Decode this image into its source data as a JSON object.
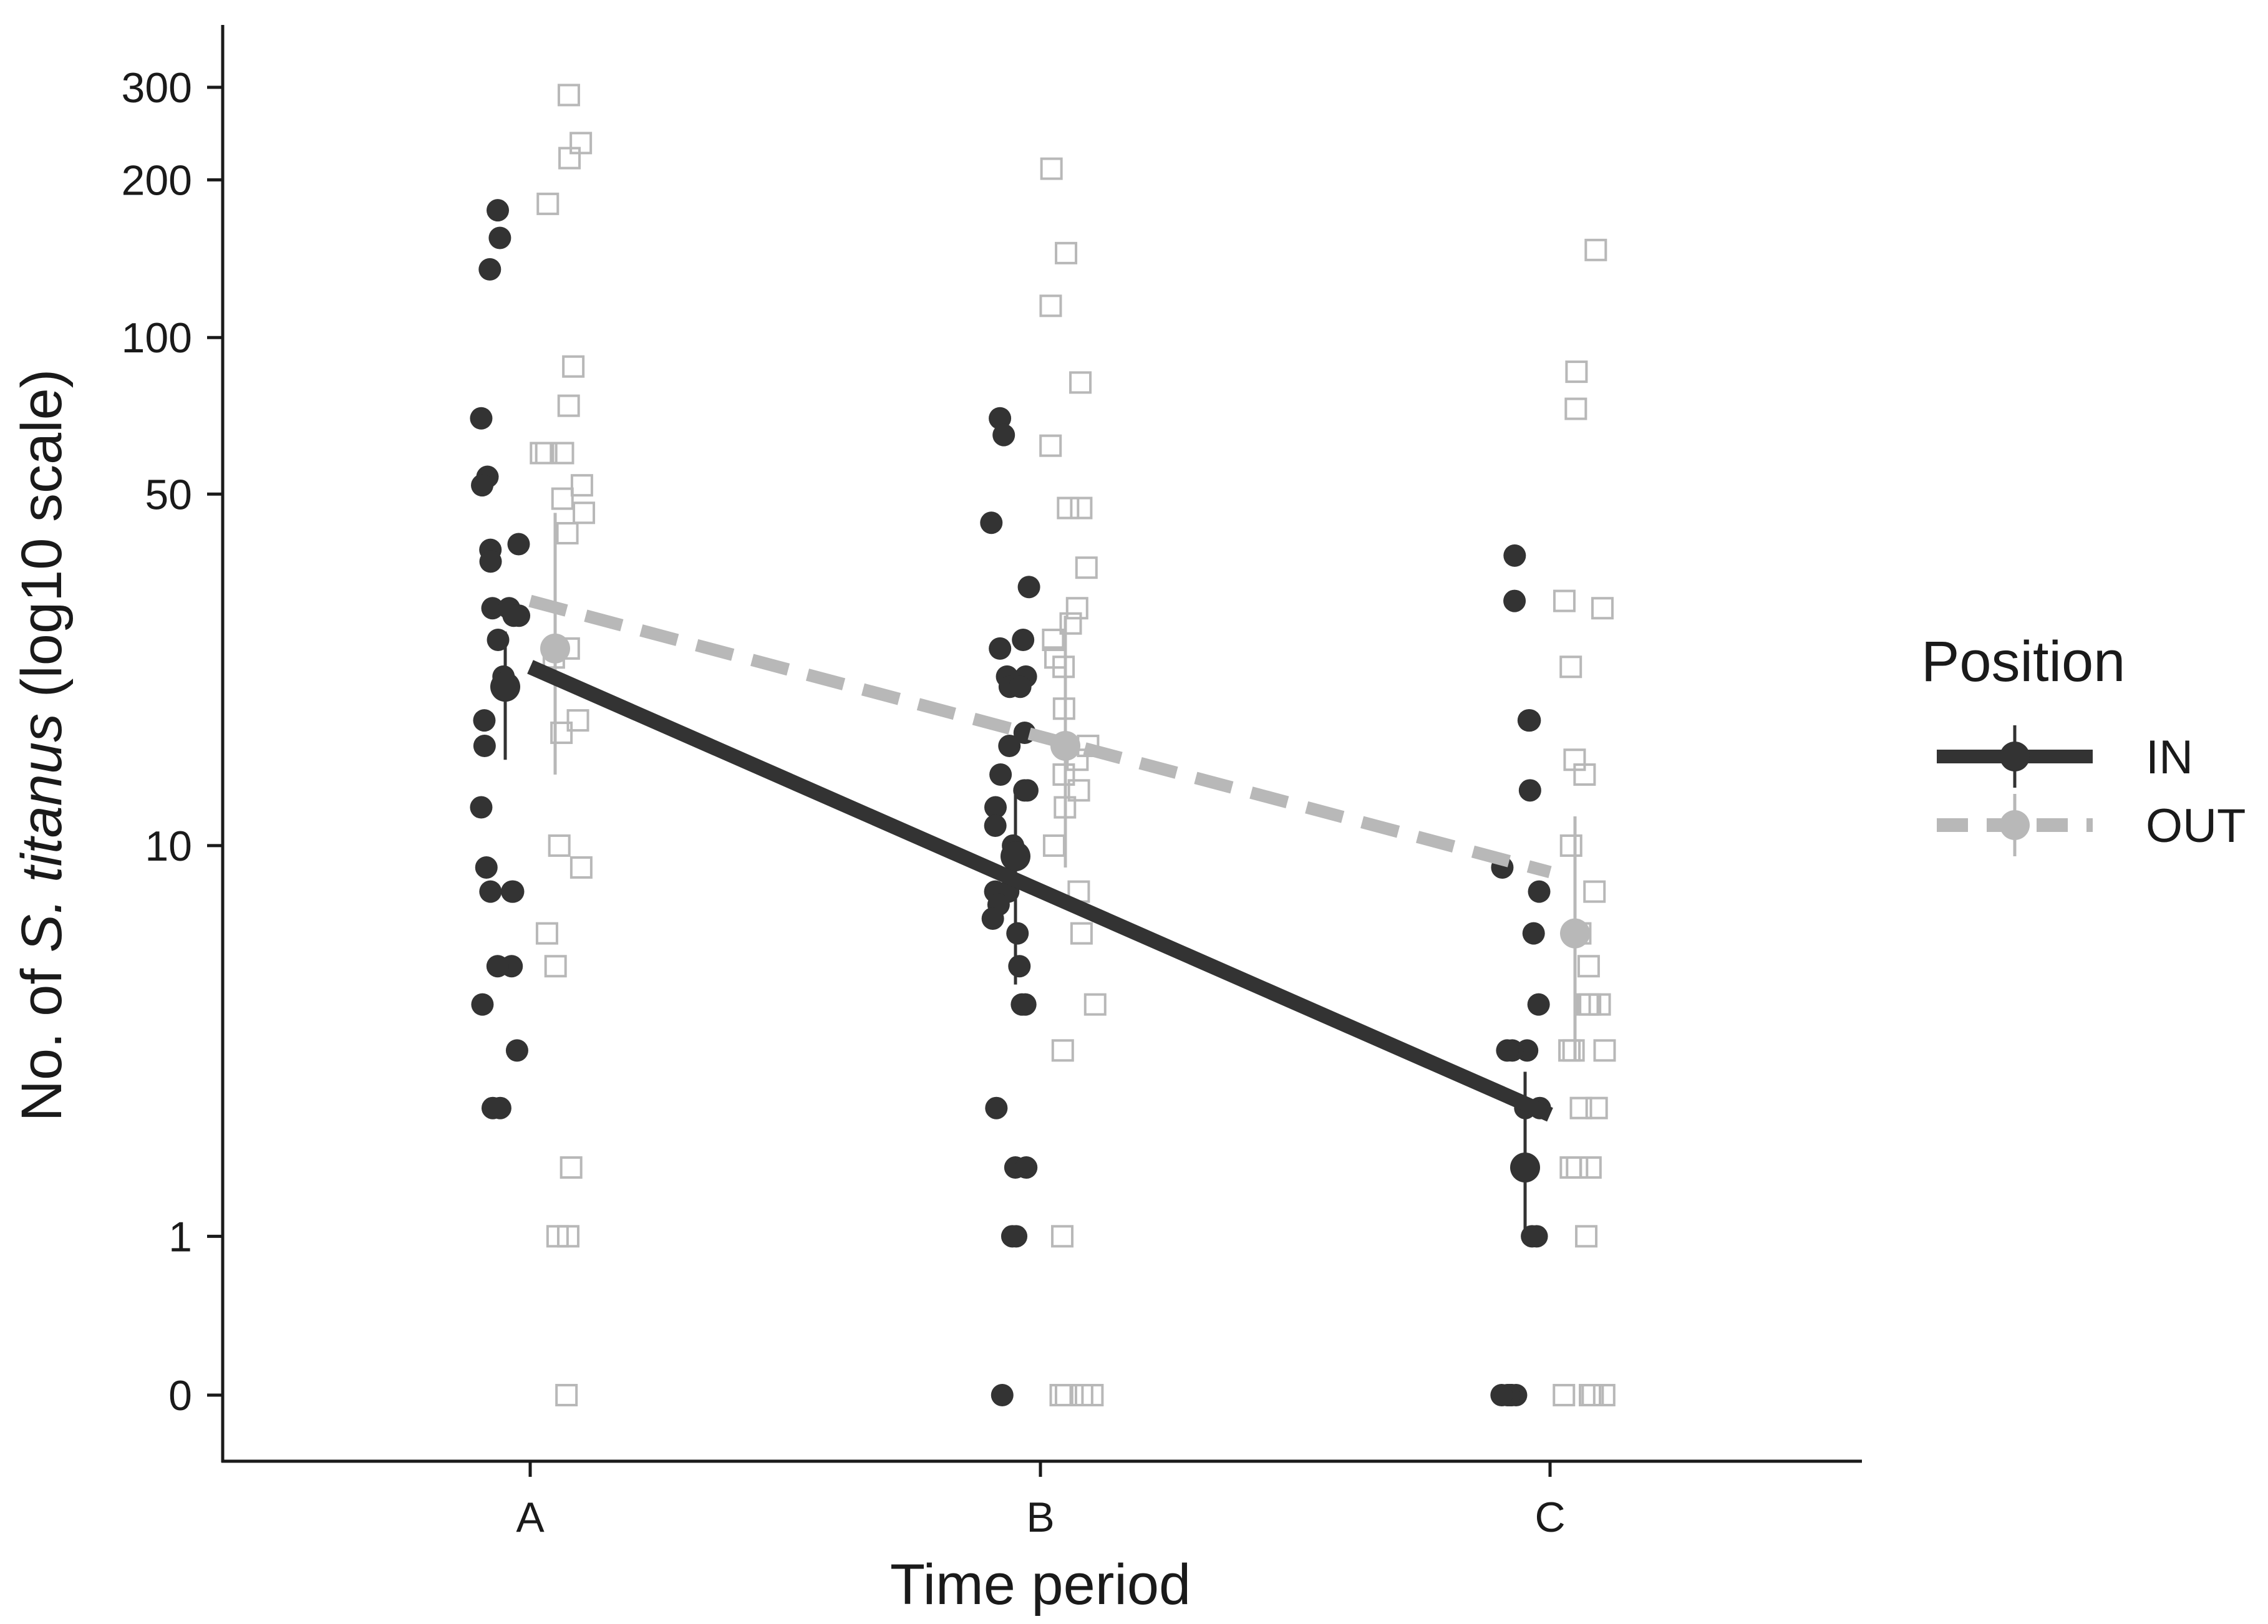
{
  "chart_data": {
    "type": "scatter",
    "title": "",
    "xlabel": "Time period",
    "ylabel_prefix": "No. of ",
    "ylabel_species": "S. titanus",
    "ylabel_suffix": " (log10 scale)",
    "y_scale": "log10(y+1)",
    "categories": [
      "A",
      "B",
      "C"
    ],
    "y_ticks": [
      0,
      1,
      10,
      50,
      100,
      200,
      300
    ],
    "y_tick_labels": [
      "0",
      "1",
      "10",
      "50",
      "100",
      "200",
      "300"
    ],
    "ylim": [
      0,
      300
    ],
    "grid": false,
    "legend": {
      "title": "Position",
      "placement": "right"
    },
    "series": [
      {
        "name": "IN",
        "color": "#333333",
        "marker": "filled-circle",
        "line_style": "solid",
        "fit_line": [
          {
            "category": "A",
            "y": 23
          },
          {
            "category": "C",
            "y": 2.4
          }
        ],
        "means": [
          {
            "category": "A",
            "mean": 21,
            "ci_low": 15,
            "ci_high": 27
          },
          {
            "category": "B",
            "mean": 9.5,
            "ci_low": 5,
            "ci_high": 13
          },
          {
            "category": "C",
            "mean": 1.7,
            "ci_low": 1.0,
            "ci_high": 3.1
          }
        ],
        "points": [
          {
            "category": "A",
            "values": [
              175,
              155,
              135,
              70,
              54,
              52,
              40,
              39,
              37,
              30,
              30,
              29,
              29,
              26,
              22,
              21,
              18,
              16,
              12,
              9,
              8,
              8,
              8,
              5.5,
              5.5,
              4.5,
              3.5,
              2.5,
              2.5
            ]
          },
          {
            "category": "B",
            "values": [
              70,
              65,
              44,
              33,
              26,
              25,
              22,
              22,
              21,
              21,
              17,
              16,
              14,
              13,
              13,
              12,
              11,
              10,
              8,
              8,
              7.5,
              7,
              6.5,
              5.5,
              4.5,
              4.5,
              2.5,
              1.7,
              1.7,
              1,
              1,
              0
            ]
          },
          {
            "category": "C",
            "values": [
              38,
              31,
              18,
              18,
              13,
              9,
              8,
              6.5,
              4.5,
              3.5,
              3.5,
              3.5,
              2.5,
              2.5,
              1.7,
              1,
              1,
              0,
              0,
              0,
              0,
              0,
              0
            ]
          }
        ]
      },
      {
        "name": "OUT",
        "color": "#b8b8b8",
        "marker": "open-square",
        "line_style": "dashed",
        "fit_line": [
          {
            "category": "A",
            "y": 31
          },
          {
            "category": "C",
            "y": 8.8
          }
        ],
        "means": [
          {
            "category": "A",
            "mean": 25,
            "ci_low": 14,
            "ci_high": 46
          },
          {
            "category": "B",
            "mean": 16,
            "ci_low": 9,
            "ci_high": 29
          },
          {
            "category": "C",
            "mean": 6.5,
            "ci_low": 3.3,
            "ci_high": 11.5
          }
        ],
        "points": [
          {
            "category": "A",
            "values": [
              290,
              235,
              220,
              180,
              88,
              74,
              60,
              60,
              60,
              52,
              49,
              46,
              42,
              25,
              24,
              18,
              17,
              10,
              9,
              6.5,
              5.5,
              1.7,
              1,
              1,
              0
            ]
          },
          {
            "category": "B",
            "values": [
              210,
              145,
              115,
              82,
              62,
              47,
              47,
              36,
              30,
              28,
              26,
              24,
              23,
              19,
              16,
              15,
              14,
              13,
              12,
              10,
              8,
              6.5,
              4.5,
              3.5,
              1,
              0,
              0,
              0,
              0
            ]
          },
          {
            "category": "C",
            "values": [
              147,
              86,
              73,
              31,
              30,
              23,
              15,
              14,
              10,
              8,
              6.5,
              5.5,
              4.5,
              4.5,
              4.5,
              3.5,
              3.5,
              3.5,
              2.5,
              2.5,
              1.7,
              1.7,
              1.7,
              1,
              0,
              0,
              0,
              0
            ]
          }
        ]
      }
    ]
  }
}
